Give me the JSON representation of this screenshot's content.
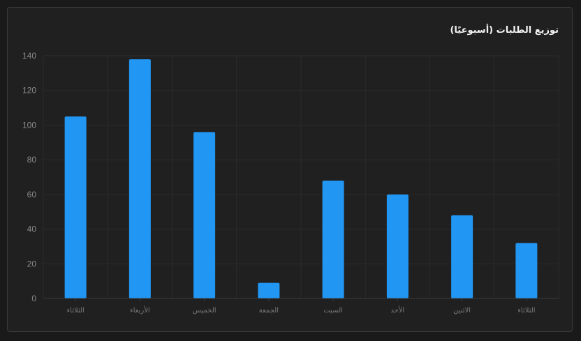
{
  "chart_data": {
    "type": "bar",
    "title": "توزيع الطلبات (أسبوعيًا)",
    "xlabel": "",
    "ylabel": "",
    "categories": [
      "الثلاثاء",
      "الأربعاء",
      "الخميس",
      "الجمعة",
      "السبت",
      "الأحد",
      "الاثنين",
      "الثلاثاء"
    ],
    "values": [
      105,
      138,
      96,
      9,
      68,
      60,
      48,
      32
    ],
    "yticks": [
      0,
      20,
      40,
      60,
      80,
      100,
      120,
      140
    ],
    "ylim": [
      0,
      140
    ],
    "grid": true,
    "legend": "none",
    "colors": {
      "bar": "#2196f3",
      "background": "#202020",
      "grid": "#2b2b2b",
      "text": "#8a8a8a"
    }
  }
}
